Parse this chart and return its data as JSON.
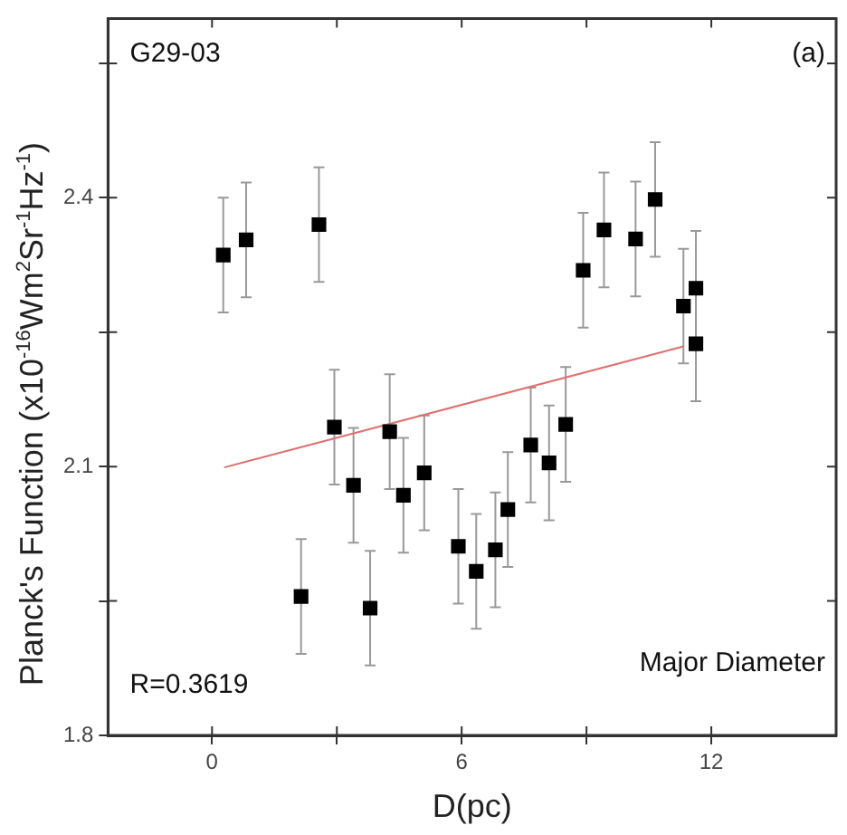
{
  "chart_data": {
    "type": "scatter",
    "xlabel": "D(pc)",
    "ylabel": "Planck's Function (x10$^{-16}$Wm$^{2}$Sr$^{-1}$Hz$^{-1}$)",
    "annotations": [
      "G29-03",
      "(a)",
      "R=0.3619",
      "Major Diameter"
    ],
    "xlim": [
      -2.5,
      15
    ],
    "xticks": [
      0,
      {
        "value": 3,
        "label": null
      },
      6,
      {
        "value": 9,
        "label": null
      },
      12
    ],
    "ylim": [
      1.8,
      2.6
    ],
    "yticks": [
      1.8,
      {
        "value": 1.95,
        "label": null
      },
      2.1,
      {
        "value": 2.25,
        "label": null
      },
      2.4,
      {
        "value": 2.55,
        "label": null
      }
    ],
    "grid": false,
    "series": [
      {
        "marker": "square",
        "color": "#000000",
        "x": [
          0.27,
          0.82,
          2.14,
          2.57,
          2.94,
          3.4,
          3.8,
          4.27,
          4.6,
          5.1,
          5.92,
          6.35,
          6.81,
          7.11,
          7.66,
          8.1,
          8.5,
          8.92,
          9.42,
          10.18,
          10.65,
          11.33,
          11.63,
          11.63
        ],
        "values": [
          2.336,
          2.353,
          1.955,
          2.37,
          2.144,
          2.079,
          1.942,
          2.139,
          2.068,
          2.093,
          2.011,
          1.983,
          2.007,
          2.052,
          2.124,
          2.104,
          2.147,
          2.319,
          2.364,
          2.354,
          2.398,
          2.279,
          2.299,
          2.237
        ],
        "errors": [
          0.064,
          0.064,
          0.064,
          0.064,
          0.064,
          0.064,
          0.064,
          0.064,
          0.064,
          0.064,
          0.064,
          0.064,
          0.064,
          0.064,
          0.064,
          0.064,
          0.064,
          0.064,
          0.064,
          0.064,
          0.064,
          0.064,
          0.064,
          0.064
        ]
      },
      {
        "type": "line",
        "color": "#e07070",
        "x": [
          0.29,
          11.33
        ],
        "values": [
          2.099,
          2.234
        ]
      }
    ]
  }
}
